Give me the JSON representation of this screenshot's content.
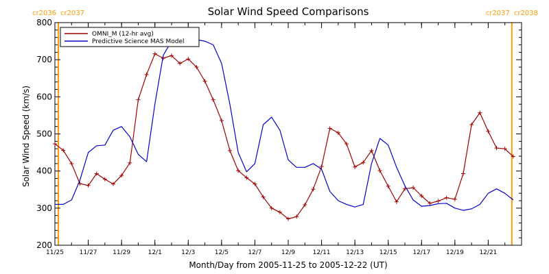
{
  "chart_data": {
    "type": "line",
    "title": "Solar Wind Speed Comparisons",
    "xlabel": "Month/Day from 2005-11-25 to 2005-12-22 (UT)",
    "ylabel": "Solar Wind Speed (km/s)",
    "xlim": [
      "2005-11-25",
      "2005-12-22"
    ],
    "ylim": [
      200,
      800
    ],
    "y_ticks": [
      200,
      300,
      400,
      500,
      600,
      700,
      800
    ],
    "x_ticks": [
      {
        "date": "2005-11-25",
        "label": "11/25"
      },
      {
        "date": "2005-11-27",
        "label": "11/27"
      },
      {
        "date": "2005-11-29",
        "label": "11/29"
      },
      {
        "date": "2005-12-01",
        "label": "12/1"
      },
      {
        "date": "2005-12-03",
        "label": "12/3"
      },
      {
        "date": "2005-12-05",
        "label": "12/5"
      },
      {
        "date": "2005-12-07",
        "label": "12/7"
      },
      {
        "date": "2005-12-09",
        "label": "12/9"
      },
      {
        "date": "2005-12-11",
        "label": "12/11"
      },
      {
        "date": "2005-12-13",
        "label": "12/13"
      },
      {
        "date": "2005-12-15",
        "label": "12/15"
      },
      {
        "date": "2005-12-17",
        "label": "12/17"
      },
      {
        "date": "2005-12-19",
        "label": "12/19"
      },
      {
        "date": "2005-12-21",
        "label": "12/21"
      }
    ],
    "carrington_markers": [
      {
        "date": "2005-11-25T05:00",
        "left": "cr2036",
        "right": "cr2037"
      },
      {
        "date": "2005-12-22T10:00",
        "left": "cr2037",
        "right": "cr2038"
      }
    ],
    "legend_position": "top-left",
    "series": [
      {
        "name": "OMNI_M (12-hr avg)",
        "color": "#a00000",
        "marker": "plus",
        "points": [
          [
            "2005-11-25T00:00",
            473
          ],
          [
            "2005-11-25T12:00",
            456
          ],
          [
            "2005-11-26T00:00",
            420
          ],
          [
            "2005-11-26T12:00",
            366
          ],
          [
            "2005-11-27T00:00",
            361
          ],
          [
            "2005-11-27T12:00",
            393
          ],
          [
            "2005-11-28T00:00",
            378
          ],
          [
            "2005-11-28T12:00",
            365
          ],
          [
            "2005-11-29T00:00",
            388
          ],
          [
            "2005-11-29T12:00",
            422
          ],
          [
            "2005-11-30T00:00",
            592
          ],
          [
            "2005-11-30T12:00",
            660
          ],
          [
            "2005-12-01T00:00",
            716
          ],
          [
            "2005-12-01T12:00",
            704
          ],
          [
            "2005-12-02T00:00",
            711
          ],
          [
            "2005-12-02T12:00",
            690
          ],
          [
            "2005-12-03T00:00",
            702
          ],
          [
            "2005-12-03T12:00",
            680
          ],
          [
            "2005-12-04T00:00",
            642
          ],
          [
            "2005-12-04T12:00",
            592
          ],
          [
            "2005-12-05T00:00",
            536
          ],
          [
            "2005-12-05T12:00",
            455
          ],
          [
            "2005-12-06T00:00",
            401
          ],
          [
            "2005-12-06T12:00",
            382
          ],
          [
            "2005-12-07T00:00",
            365
          ],
          [
            "2005-12-07T12:00",
            330
          ],
          [
            "2005-12-08T00:00",
            300
          ],
          [
            "2005-12-08T12:00",
            289
          ],
          [
            "2005-12-09T00:00",
            271
          ],
          [
            "2005-12-09T12:00",
            277
          ],
          [
            "2005-12-10T00:00",
            309
          ],
          [
            "2005-12-10T12:00",
            351
          ],
          [
            "2005-12-11T00:00",
            412
          ],
          [
            "2005-12-11T12:00",
            515
          ],
          [
            "2005-12-12T00:00",
            503
          ],
          [
            "2005-12-12T12:00",
            473
          ],
          [
            "2005-12-13T00:00",
            411
          ],
          [
            "2005-12-13T12:00",
            423
          ],
          [
            "2005-12-14T00:00",
            455
          ],
          [
            "2005-12-14T12:00",
            401
          ],
          [
            "2005-12-15T00:00",
            359
          ],
          [
            "2005-12-15T12:00",
            317
          ],
          [
            "2005-12-16T00:00",
            352
          ],
          [
            "2005-12-16T12:00",
            355
          ],
          [
            "2005-12-17T00:00",
            333
          ],
          [
            "2005-12-17T12:00",
            313
          ],
          [
            "2005-12-18T00:00",
            319
          ],
          [
            "2005-12-18T12:00",
            328
          ],
          [
            "2005-12-19T00:00",
            324
          ],
          [
            "2005-12-19T12:00",
            393
          ],
          [
            "2005-12-20T00:00",
            525
          ],
          [
            "2005-12-20T12:00",
            557
          ],
          [
            "2005-12-21T00:00",
            507
          ],
          [
            "2005-12-21T12:00",
            462
          ],
          [
            "2005-12-22T00:00",
            460
          ],
          [
            "2005-12-22T12:00",
            439
          ]
        ]
      },
      {
        "name": "Predictive Science MAS Model",
        "color": "#0000cc",
        "marker": "none",
        "points": [
          [
            "2005-11-25T00:00",
            310
          ],
          [
            "2005-11-25T12:00",
            310
          ],
          [
            "2005-11-26T00:00",
            322
          ],
          [
            "2005-11-26T12:00",
            375
          ],
          [
            "2005-11-27T00:00",
            450
          ],
          [
            "2005-11-27T12:00",
            468
          ],
          [
            "2005-11-28T00:00",
            470
          ],
          [
            "2005-11-28T12:00",
            510
          ],
          [
            "2005-11-29T00:00",
            520
          ],
          [
            "2005-11-29T12:00",
            492
          ],
          [
            "2005-11-30T00:00",
            445
          ],
          [
            "2005-11-30T12:00",
            425
          ],
          [
            "2005-12-01T00:00",
            580
          ],
          [
            "2005-12-01T12:00",
            712
          ],
          [
            "2005-12-02T00:00",
            750
          ],
          [
            "2005-12-02T12:00",
            755
          ],
          [
            "2005-12-03T00:00",
            755
          ],
          [
            "2005-12-03T12:00",
            754
          ],
          [
            "2005-12-04T00:00",
            750
          ],
          [
            "2005-12-04T12:00",
            740
          ],
          [
            "2005-12-05T00:00",
            690
          ],
          [
            "2005-12-05T12:00",
            580
          ],
          [
            "2005-12-06T00:00",
            450
          ],
          [
            "2005-12-06T12:00",
            398
          ],
          [
            "2005-12-07T00:00",
            420
          ],
          [
            "2005-12-07T12:00",
            525
          ],
          [
            "2005-12-08T00:00",
            545
          ],
          [
            "2005-12-08T12:00",
            510
          ],
          [
            "2005-12-09T00:00",
            430
          ],
          [
            "2005-12-09T12:00",
            410
          ],
          [
            "2005-12-10T00:00",
            410
          ],
          [
            "2005-12-10T12:00",
            420
          ],
          [
            "2005-12-11T00:00",
            405
          ],
          [
            "2005-12-11T12:00",
            345
          ],
          [
            "2005-12-12T00:00",
            320
          ],
          [
            "2005-12-12T12:00",
            310
          ],
          [
            "2005-12-13T00:00",
            303
          ],
          [
            "2005-12-13T12:00",
            310
          ],
          [
            "2005-12-14T00:00",
            420
          ],
          [
            "2005-12-14T12:00",
            488
          ],
          [
            "2005-12-15T00:00",
            470
          ],
          [
            "2005-12-15T12:00",
            410
          ],
          [
            "2005-12-16T00:00",
            360
          ],
          [
            "2005-12-16T12:00",
            322
          ],
          [
            "2005-12-17T00:00",
            305
          ],
          [
            "2005-12-17T12:00",
            307
          ],
          [
            "2005-12-18T00:00",
            312
          ],
          [
            "2005-12-18T12:00",
            313
          ],
          [
            "2005-12-19T00:00",
            300
          ],
          [
            "2005-12-19T12:00",
            294
          ],
          [
            "2005-12-20T00:00",
            298
          ],
          [
            "2005-12-20T12:00",
            310
          ],
          [
            "2005-12-21T00:00",
            340
          ],
          [
            "2005-12-21T12:00",
            352
          ],
          [
            "2005-12-22T00:00",
            340
          ],
          [
            "2005-12-22T12:00",
            322
          ]
        ]
      }
    ]
  }
}
